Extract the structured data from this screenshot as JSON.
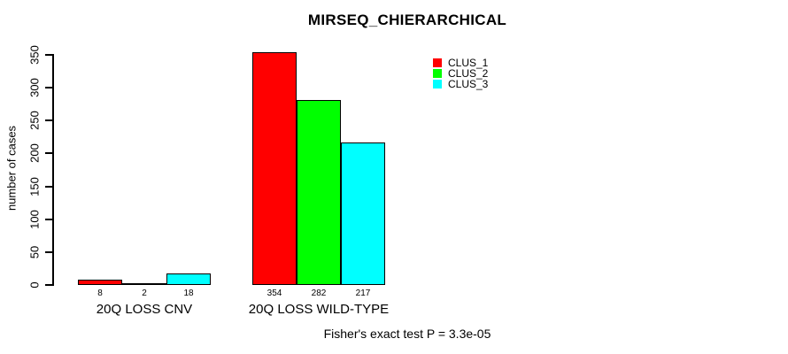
{
  "chart_data": {
    "type": "bar",
    "title": "MIRSEQ_CHIERARCHICAL",
    "ylabel": "number of cases",
    "xlabel": "",
    "categories": [
      "20Q LOSS CNV",
      "20Q LOSS WILD-TYPE"
    ],
    "series": [
      {
        "name": "CLUS_1",
        "color": "#ff0000",
        "values": [
          8,
          354
        ]
      },
      {
        "name": "CLUS_2",
        "color": "#00ff00",
        "values": [
          2,
          282
        ]
      },
      {
        "name": "CLUS_3",
        "color": "#00ffff",
        "values": [
          18,
          217
        ]
      }
    ],
    "bar_value_labels": [
      [
        8,
        2,
        18
      ],
      [
        354,
        282,
        217
      ]
    ],
    "ylim": [
      0,
      350
    ],
    "yticks": [
      0,
      50,
      100,
      150,
      200,
      250,
      300,
      350
    ],
    "grid": false,
    "legend": {
      "position": "top-right",
      "entries": [
        "CLUS_1",
        "CLUS_2",
        "CLUS_3"
      ]
    },
    "annotation": "Fisher's exact test P = 3.3e-05",
    "bar_border_color": "#000000",
    "background_color": "#ffffff"
  }
}
